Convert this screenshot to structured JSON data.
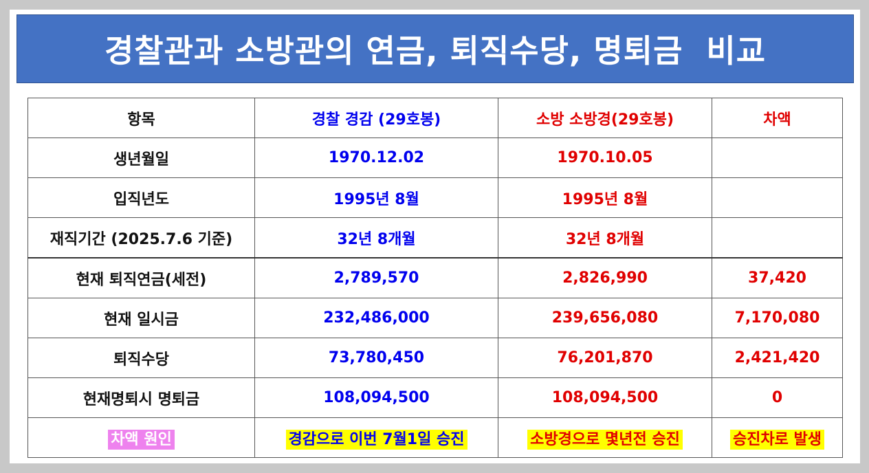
{
  "title": "경찰관과 소방관의 연금, 퇴직수당, 명퇴금  비교",
  "colors": {
    "title_bg": "#4472c4",
    "police_text": "#0000ee",
    "fire_text": "#e00000",
    "highlight_yellow": "#ffff00",
    "highlight_pink": "#ee82ee"
  },
  "table": {
    "headers": {
      "item": "항목",
      "police": "경찰 경감 (29호봉)",
      "fire": "소방 소방경(29호봉)",
      "diff": "차액"
    },
    "rows": [
      {
        "label": "생년월일",
        "police": "1970.12.02",
        "fire": "1970.10.05",
        "diff": ""
      },
      {
        "label": "입직년도",
        "police": "1995년 8월",
        "fire": "1995년 8월",
        "diff": ""
      },
      {
        "label": "재직기간 (2025.7.6 기준)",
        "police": "32년 8개월",
        "fire": "32년 8개월",
        "diff": ""
      },
      {
        "label": "현재 퇴직연금(세전)",
        "police": "2,789,570",
        "fire": "2,826,990",
        "diff": "37,420"
      },
      {
        "label": "현재 일시금",
        "police": "232,486,000",
        "fire": "239,656,080",
        "diff": "7,170,080"
      },
      {
        "label": "퇴직수당",
        "police": "73,780,450",
        "fire": "76,201,870",
        "diff": "2,421,420"
      },
      {
        "label": "현재명퇴시 명퇴금",
        "police": "108,094,500",
        "fire": "108,094,500",
        "diff": "0"
      }
    ],
    "cause": {
      "label": "차액 원인",
      "police": "경감으로 이번 7월1일 승진",
      "fire": "소방경으로 몇년전 승진",
      "diff": "승진차로 발생"
    }
  }
}
